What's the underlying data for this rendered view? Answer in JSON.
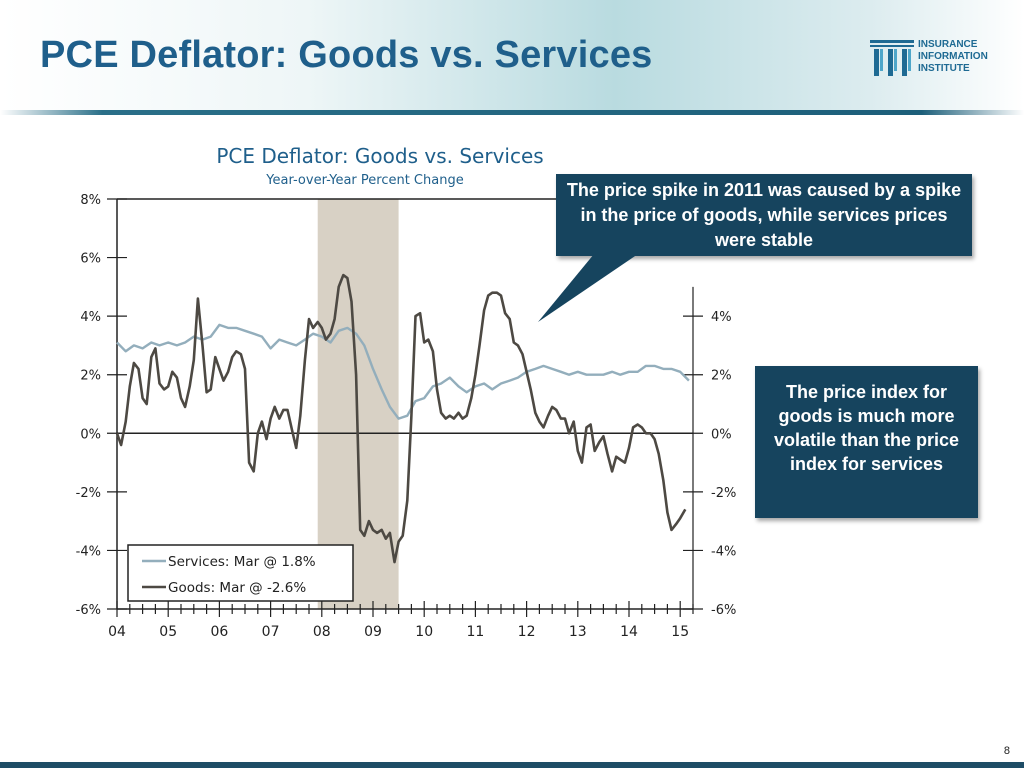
{
  "slide": {
    "title": "PCE Deflator: Goods vs. Services",
    "page_number": "8"
  },
  "logo": {
    "line1": "INSURANCE",
    "line2": "INFORMATION",
    "line3": "INSTITUTE",
    "color": "#1e6a93"
  },
  "callouts": {
    "top": "The price spike in 2011 was caused by a spike in the price of goods, while services prices were stable",
    "right": "The price index for goods is much more volatile than the price index for services"
  },
  "chart_data": {
    "type": "line",
    "title": "PCE Deflator: Goods vs. Services",
    "subtitle": "Year-over-Year Percent Change",
    "xlabel": "",
    "ylabel": "",
    "x_range": [
      2004.0,
      2015.25
    ],
    "ylim": [
      -6,
      8
    ],
    "x_ticks": [
      {
        "value": 2004,
        "label": "04"
      },
      {
        "value": 2005,
        "label": "05"
      },
      {
        "value": 2006,
        "label": "06"
      },
      {
        "value": 2007,
        "label": "07"
      },
      {
        "value": 2008,
        "label": "08"
      },
      {
        "value": 2009,
        "label": "09"
      },
      {
        "value": 2010,
        "label": "10"
      },
      {
        "value": 2011,
        "label": "11"
      },
      {
        "value": 2012,
        "label": "12"
      },
      {
        "value": 2013,
        "label": "13"
      },
      {
        "value": 2014,
        "label": "14"
      },
      {
        "value": 2015,
        "label": "15"
      }
    ],
    "y_ticks_left": [
      {
        "value": 8,
        "label": "8%"
      },
      {
        "value": 6,
        "label": "6%"
      },
      {
        "value": 4,
        "label": "4%"
      },
      {
        "value": 2,
        "label": "2%"
      },
      {
        "value": 0,
        "label": "0%"
      },
      {
        "value": -2,
        "label": "-2%"
      },
      {
        "value": -4,
        "label": "-4%"
      },
      {
        "value": -6,
        "label": "-6%"
      }
    ],
    "y_ticks_right": [
      {
        "value": 4,
        "label": "4%"
      },
      {
        "value": 2,
        "label": "2%"
      },
      {
        "value": 0,
        "label": "0%"
      },
      {
        "value": -2,
        "label": "-2%"
      },
      {
        "value": -4,
        "label": "-4%"
      },
      {
        "value": -6,
        "label": "-6%"
      }
    ],
    "recession_band": [
      2007.92,
      2009.5
    ],
    "legend": [
      {
        "label": "Services: Mar @ 1.8%"
      },
      {
        "label": "Goods: Mar @ -2.6%"
      }
    ],
    "legend_position": "bottom-left",
    "series": [
      {
        "key": "services",
        "color": "#93aebc",
        "points": [
          [
            2004.0,
            3.1
          ],
          [
            2004.17,
            2.8
          ],
          [
            2004.33,
            3.0
          ],
          [
            2004.5,
            2.9
          ],
          [
            2004.67,
            3.1
          ],
          [
            2004.83,
            3.0
          ],
          [
            2005.0,
            3.1
          ],
          [
            2005.17,
            3.0
          ],
          [
            2005.33,
            3.1
          ],
          [
            2005.5,
            3.3
          ],
          [
            2005.67,
            3.2
          ],
          [
            2005.83,
            3.3
          ],
          [
            2006.0,
            3.7
          ],
          [
            2006.17,
            3.6
          ],
          [
            2006.33,
            3.6
          ],
          [
            2006.5,
            3.5
          ],
          [
            2006.67,
            3.4
          ],
          [
            2006.83,
            3.3
          ],
          [
            2007.0,
            2.9
          ],
          [
            2007.17,
            3.2
          ],
          [
            2007.33,
            3.1
          ],
          [
            2007.5,
            3.0
          ],
          [
            2007.67,
            3.2
          ],
          [
            2007.83,
            3.4
          ],
          [
            2008.0,
            3.3
          ],
          [
            2008.17,
            3.1
          ],
          [
            2008.33,
            3.5
          ],
          [
            2008.5,
            3.6
          ],
          [
            2008.67,
            3.4
          ],
          [
            2008.83,
            3.0
          ],
          [
            2009.0,
            2.2
          ],
          [
            2009.17,
            1.5
          ],
          [
            2009.33,
            0.9
          ],
          [
            2009.5,
            0.5
          ],
          [
            2009.67,
            0.6
          ],
          [
            2009.83,
            1.1
          ],
          [
            2010.0,
            1.2
          ],
          [
            2010.17,
            1.6
          ],
          [
            2010.33,
            1.7
          ],
          [
            2010.5,
            1.9
          ],
          [
            2010.67,
            1.6
          ],
          [
            2010.83,
            1.4
          ],
          [
            2011.0,
            1.6
          ],
          [
            2011.17,
            1.7
          ],
          [
            2011.33,
            1.5
          ],
          [
            2011.5,
            1.7
          ],
          [
            2011.67,
            1.8
          ],
          [
            2011.83,
            1.9
          ],
          [
            2012.0,
            2.1
          ],
          [
            2012.17,
            2.2
          ],
          [
            2012.33,
            2.3
          ],
          [
            2012.5,
            2.2
          ],
          [
            2012.67,
            2.1
          ],
          [
            2012.83,
            2.0
          ],
          [
            2013.0,
            2.1
          ],
          [
            2013.17,
            2.0
          ],
          [
            2013.33,
            2.0
          ],
          [
            2013.5,
            2.0
          ],
          [
            2013.67,
            2.1
          ],
          [
            2013.83,
            2.0
          ],
          [
            2014.0,
            2.1
          ],
          [
            2014.17,
            2.1
          ],
          [
            2014.33,
            2.3
          ],
          [
            2014.5,
            2.3
          ],
          [
            2014.67,
            2.2
          ],
          [
            2014.83,
            2.2
          ],
          [
            2015.0,
            2.1
          ],
          [
            2015.17,
            1.8
          ]
        ]
      },
      {
        "key": "goods",
        "color": "#4d4943",
        "points": [
          [
            2004.0,
            0.0
          ],
          [
            2004.08,
            -0.4
          ],
          [
            2004.17,
            0.4
          ],
          [
            2004.25,
            1.6
          ],
          [
            2004.33,
            2.4
          ],
          [
            2004.42,
            2.2
          ],
          [
            2004.5,
            1.2
          ],
          [
            2004.58,
            1.0
          ],
          [
            2004.67,
            2.6
          ],
          [
            2004.75,
            2.9
          ],
          [
            2004.83,
            1.7
          ],
          [
            2004.92,
            1.5
          ],
          [
            2005.0,
            1.6
          ],
          [
            2005.08,
            2.1
          ],
          [
            2005.17,
            1.9
          ],
          [
            2005.25,
            1.2
          ],
          [
            2005.33,
            0.9
          ],
          [
            2005.42,
            1.6
          ],
          [
            2005.5,
            2.5
          ],
          [
            2005.58,
            4.6
          ],
          [
            2005.67,
            3.0
          ],
          [
            2005.75,
            1.4
          ],
          [
            2005.83,
            1.5
          ],
          [
            2005.92,
            2.6
          ],
          [
            2006.0,
            2.2
          ],
          [
            2006.08,
            1.8
          ],
          [
            2006.17,
            2.1
          ],
          [
            2006.25,
            2.6
          ],
          [
            2006.33,
            2.8
          ],
          [
            2006.42,
            2.7
          ],
          [
            2006.5,
            2.2
          ],
          [
            2006.58,
            -1.0
          ],
          [
            2006.67,
            -1.3
          ],
          [
            2006.75,
            0.0
          ],
          [
            2006.83,
            0.4
          ],
          [
            2006.92,
            -0.2
          ],
          [
            2007.0,
            0.5
          ],
          [
            2007.08,
            0.9
          ],
          [
            2007.17,
            0.5
          ],
          [
            2007.25,
            0.8
          ],
          [
            2007.33,
            0.8
          ],
          [
            2007.42,
            0.1
          ],
          [
            2007.5,
            -0.5
          ],
          [
            2007.58,
            0.6
          ],
          [
            2007.67,
            2.5
          ],
          [
            2007.75,
            3.9
          ],
          [
            2007.83,
            3.6
          ],
          [
            2007.92,
            3.8
          ],
          [
            2008.0,
            3.6
          ],
          [
            2008.08,
            3.2
          ],
          [
            2008.17,
            3.4
          ],
          [
            2008.25,
            3.9
          ],
          [
            2008.33,
            5.0
          ],
          [
            2008.42,
            5.4
          ],
          [
            2008.5,
            5.3
          ],
          [
            2008.58,
            4.5
          ],
          [
            2008.67,
            2.0
          ],
          [
            2008.75,
            -3.3
          ],
          [
            2008.83,
            -3.5
          ],
          [
            2008.92,
            -3.0
          ],
          [
            2009.0,
            -3.3
          ],
          [
            2009.08,
            -3.4
          ],
          [
            2009.17,
            -3.3
          ],
          [
            2009.25,
            -3.6
          ],
          [
            2009.33,
            -3.4
          ],
          [
            2009.42,
            -4.4
          ],
          [
            2009.5,
            -3.7
          ],
          [
            2009.58,
            -3.5
          ],
          [
            2009.67,
            -2.3
          ],
          [
            2009.75,
            0.6
          ],
          [
            2009.83,
            4.0
          ],
          [
            2009.92,
            4.1
          ],
          [
            2010.0,
            3.1
          ],
          [
            2010.08,
            3.2
          ],
          [
            2010.17,
            2.8
          ],
          [
            2010.25,
            1.5
          ],
          [
            2010.33,
            0.7
          ],
          [
            2010.42,
            0.5
          ],
          [
            2010.5,
            0.6
          ],
          [
            2010.58,
            0.5
          ],
          [
            2010.67,
            0.7
          ],
          [
            2010.75,
            0.5
          ],
          [
            2010.83,
            0.6
          ],
          [
            2010.92,
            1.2
          ],
          [
            2011.0,
            2.0
          ],
          [
            2011.08,
            3.0
          ],
          [
            2011.17,
            4.2
          ],
          [
            2011.25,
            4.7
          ],
          [
            2011.33,
            4.8
          ],
          [
            2011.42,
            4.8
          ],
          [
            2011.5,
            4.7
          ],
          [
            2011.58,
            4.1
          ],
          [
            2011.67,
            3.9
          ],
          [
            2011.75,
            3.1
          ],
          [
            2011.83,
            3.0
          ],
          [
            2011.92,
            2.7
          ],
          [
            2012.0,
            2.1
          ],
          [
            2012.08,
            1.5
          ],
          [
            2012.17,
            0.7
          ],
          [
            2012.25,
            0.4
          ],
          [
            2012.33,
            0.2
          ],
          [
            2012.42,
            0.6
          ],
          [
            2012.5,
            0.9
          ],
          [
            2012.58,
            0.8
          ],
          [
            2012.67,
            0.5
          ],
          [
            2012.75,
            0.5
          ],
          [
            2012.83,
            0.0
          ],
          [
            2012.92,
            0.4
          ],
          [
            2013.0,
            -0.6
          ],
          [
            2013.08,
            -1.0
          ],
          [
            2013.17,
            0.2
          ],
          [
            2013.25,
            0.3
          ],
          [
            2013.33,
            -0.6
          ],
          [
            2013.42,
            -0.3
          ],
          [
            2013.5,
            -0.1
          ],
          [
            2013.58,
            -0.7
          ],
          [
            2013.67,
            -1.3
          ],
          [
            2013.75,
            -0.8
          ],
          [
            2013.83,
            -0.9
          ],
          [
            2013.92,
            -1.0
          ],
          [
            2014.0,
            -0.5
          ],
          [
            2014.08,
            0.2
          ],
          [
            2014.17,
            0.3
          ],
          [
            2014.25,
            0.2
          ],
          [
            2014.33,
            0.0
          ],
          [
            2014.42,
            0.0
          ],
          [
            2014.5,
            -0.2
          ],
          [
            2014.58,
            -0.7
          ],
          [
            2014.67,
            -1.6
          ],
          [
            2014.75,
            -2.7
          ],
          [
            2014.83,
            -3.3
          ],
          [
            2014.92,
            -3.1
          ],
          [
            2015.0,
            -2.9
          ],
          [
            2015.1,
            -2.6
          ]
        ]
      }
    ]
  }
}
